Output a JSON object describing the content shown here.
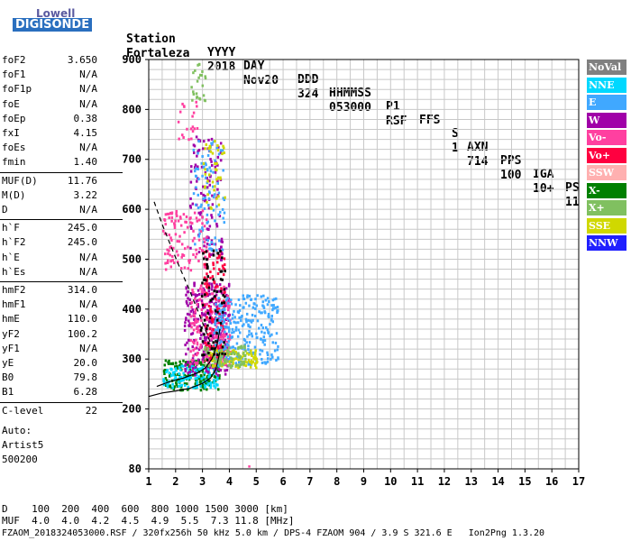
{
  "logo": {
    "line1": "Lowell",
    "line2": "DIGISONDE"
  },
  "header": {
    "labels": [
      "Station",
      "YYYY",
      "DAY",
      "DDD",
      "HHMMSS",
      "P1",
      "FFS",
      "S",
      "AXN",
      "PPS",
      "IGA",
      "PS"
    ],
    "values": [
      "Fortaleza",
      "2018",
      "Nov20",
      "324",
      "053000",
      "RSF",
      "",
      "1",
      "714",
      "100",
      "10+",
      "11"
    ]
  },
  "params": {
    "group1": [
      {
        "name": "foF2",
        "value": "3.650"
      },
      {
        "name": "foF1",
        "value": "N/A"
      },
      {
        "name": "foF1p",
        "value": "N/A"
      },
      {
        "name": "foE",
        "value": "N/A"
      },
      {
        "name": "foEp",
        "value": "0.38"
      },
      {
        "name": "fxI",
        "value": "4.15"
      },
      {
        "name": "foEs",
        "value": "N/A"
      },
      {
        "name": "fmin",
        "value": "1.40"
      }
    ],
    "group2": [
      {
        "name": "MUF(D)",
        "value": "11.76"
      },
      {
        "name": "M(D)",
        "value": "3.22"
      },
      {
        "name": "D",
        "value": "N/A"
      }
    ],
    "group3": [
      {
        "name": "h`F",
        "value": "245.0"
      },
      {
        "name": "h`F2",
        "value": "245.0"
      },
      {
        "name": "h`E",
        "value": "N/A"
      },
      {
        "name": "h`Es",
        "value": "N/A"
      }
    ],
    "group4": [
      {
        "name": "hmF2",
        "value": "314.0"
      },
      {
        "name": "hmF1",
        "value": "N/A"
      },
      {
        "name": "hmE",
        "value": "110.0"
      },
      {
        "name": "yF2",
        "value": "100.2"
      },
      {
        "name": "yF1",
        "value": "N/A"
      },
      {
        "name": "yE",
        "value": "20.0"
      },
      {
        "name": "B0",
        "value": "79.8"
      },
      {
        "name": "B1",
        "value": "6.28"
      }
    ],
    "group5": [
      {
        "name": "C-level",
        "value": "22"
      }
    ],
    "auto": [
      "Auto:",
      "Artist5",
      "500200"
    ]
  },
  "legend": [
    {
      "label": "NoVal",
      "color": "#808080"
    },
    {
      "label": "NNE",
      "color": "#00d8ff"
    },
    {
      "label": "E",
      "color": "#40a8ff"
    },
    {
      "label": "W",
      "color": "#a000a8"
    },
    {
      "label": "Vo-",
      "color": "#ff40a0"
    },
    {
      "label": "Vo+",
      "color": "#ff0040"
    },
    {
      "label": "SSW",
      "color": "#ffb0b0"
    },
    {
      "label": "X-",
      "color": "#008000"
    },
    {
      "label": "X+",
      "color": "#80c060"
    },
    {
      "label": "SSE",
      "color": "#d0d800"
    },
    {
      "label": "NNW",
      "color": "#2020ff"
    }
  ],
  "footer": {
    "line1": "D    100  200  400  600  800 1000 1500 3000 [km]",
    "line2": "MUF  4.0  4.0  4.2  4.5  4.9  5.5  7.3 11.8 [MHz]",
    "line3": "FZAOM_2018324053000.RSF / 320fx256h 50 kHz 5.0 km / DPS-4 FZAOM 904 / 3.9 S 321.6 E   Ion2Png 1.3.20"
  },
  "chart_data": {
    "type": "scatter",
    "xlim": [
      1,
      17
    ],
    "ylim": [
      80,
      900
    ],
    "xticks": [
      "1",
      "2",
      "3",
      "4",
      "5",
      "6",
      "7",
      "8",
      "9",
      "10",
      "11",
      "12",
      "13",
      "14",
      "15",
      "16",
      "17"
    ],
    "yticks": [
      "80",
      "200",
      "300",
      "400",
      "500",
      "600",
      "700",
      "800",
      "900"
    ],
    "grid": true,
    "clusters": [
      {
        "fmin": 1.5,
        "fmax": 3.6,
        "hmin": 240,
        "hmax": 300,
        "color": "#008000",
        "n": 180
      },
      {
        "fmin": 1.5,
        "fmax": 3.6,
        "hmin": 245,
        "hmax": 290,
        "color": "#00d8ff",
        "n": 120
      },
      {
        "fmin": 2.3,
        "fmax": 4.0,
        "hmin": 270,
        "hmax": 460,
        "color": "#a000a8",
        "n": 260
      },
      {
        "fmin": 2.5,
        "fmax": 4.0,
        "hmin": 290,
        "hmax": 450,
        "color": "#ff40a0",
        "n": 200
      },
      {
        "fmin": 3.0,
        "fmax": 3.8,
        "hmin": 300,
        "hmax": 520,
        "color": "#ff0040",
        "n": 120
      },
      {
        "fmin": 3.4,
        "fmax": 5.8,
        "hmin": 290,
        "hmax": 430,
        "color": "#40a8ff",
        "n": 260
      },
      {
        "fmin": 3.2,
        "fmax": 5.0,
        "hmin": 285,
        "hmax": 320,
        "color": "#d0d800",
        "n": 90
      },
      {
        "fmin": 3.0,
        "fmax": 4.6,
        "hmin": 285,
        "hmax": 330,
        "color": "#80c060",
        "n": 80
      },
      {
        "fmin": 2.5,
        "fmax": 3.7,
        "hmin": 500,
        "hmax": 750,
        "color": "#a000a8",
        "n": 110
      },
      {
        "fmin": 2.6,
        "fmax": 3.8,
        "hmin": 520,
        "hmax": 740,
        "color": "#40a8ff",
        "n": 90
      },
      {
        "fmin": 1.5,
        "fmax": 3.2,
        "hmin": 480,
        "hmax": 600,
        "color": "#ff40a0",
        "n": 110
      },
      {
        "fmin": 3.0,
        "fmax": 3.8,
        "hmin": 600,
        "hmax": 740,
        "color": "#d0d800",
        "n": 40
      },
      {
        "fmin": 2.0,
        "fmax": 2.8,
        "hmin": 740,
        "hmax": 820,
        "color": "#ff40a0",
        "n": 20
      },
      {
        "fmin": 2.5,
        "fmax": 3.1,
        "hmin": 810,
        "hmax": 895,
        "color": "#80c060",
        "n": 25
      },
      {
        "fmin": 2.9,
        "fmax": 3.8,
        "hmin": 300,
        "hmax": 520,
        "color": "#000000",
        "n": 70
      }
    ],
    "profile_curve": [
      [
        1.0,
        225
      ],
      [
        1.5,
        232
      ],
      [
        2.0,
        236
      ],
      [
        2.5,
        241
      ],
      [
        3.0,
        251
      ],
      [
        3.3,
        262
      ],
      [
        3.5,
        280
      ],
      [
        3.65,
        314
      ]
    ],
    "trace_curve": [
      [
        1.3,
        245
      ],
      [
        1.8,
        255
      ],
      [
        2.3,
        262
      ],
      [
        2.8,
        272
      ],
      [
        3.1,
        282
      ],
      [
        3.35,
        300
      ],
      [
        3.55,
        330
      ],
      [
        3.65,
        360
      ]
    ],
    "dashed_curve": [
      [
        1.2,
        615
      ],
      [
        1.5,
        570
      ],
      [
        1.8,
        530
      ],
      [
        2.1,
        490
      ],
      [
        2.5,
        440
      ],
      [
        2.8,
        400
      ],
      [
        3.1,
        360
      ],
      [
        3.35,
        325
      ]
    ],
    "stray_point": [
      4.7,
      87
    ]
  }
}
